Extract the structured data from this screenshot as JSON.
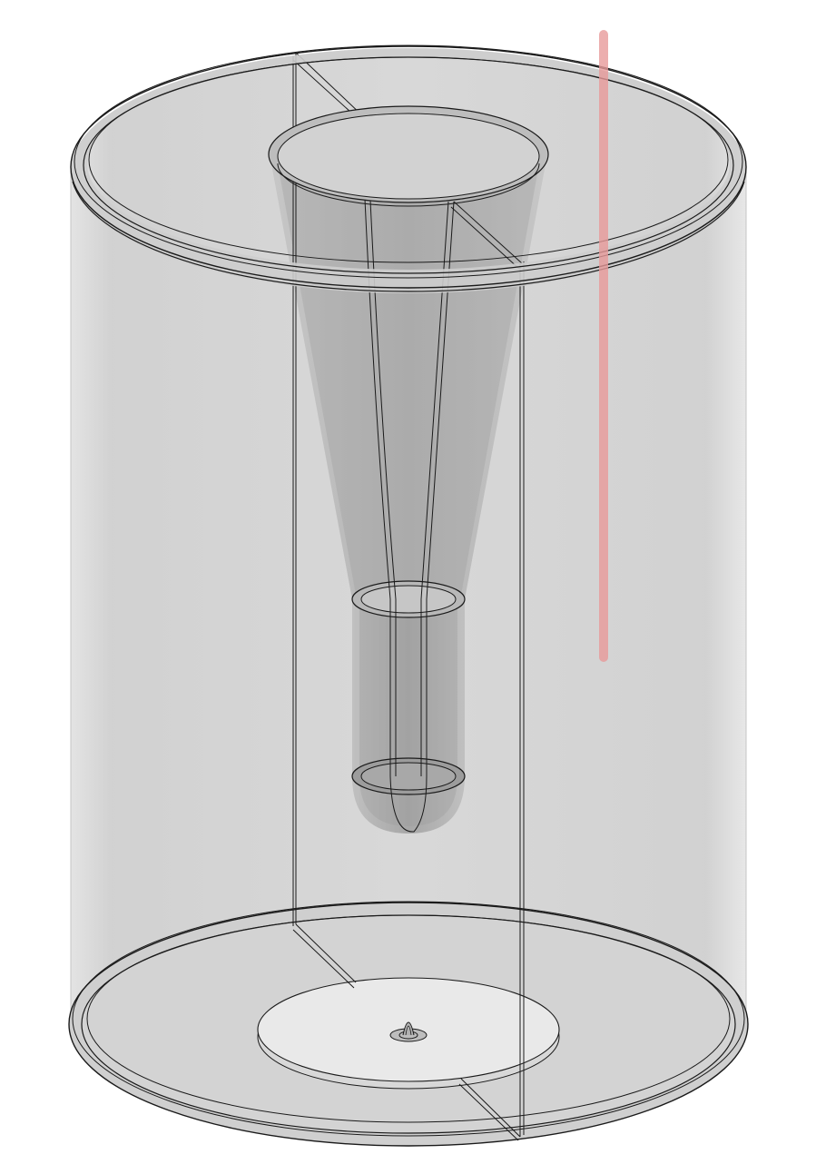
{
  "scene": {
    "background": "#ffffff",
    "body_color": "#d4d4d4",
    "body_edge_color": "#bdbdbd",
    "cone_color": "#a9a9a9",
    "floor_color": "#e8e8e8",
    "edge_color": "#1a1a1a",
    "indicator_color": "#e89a9a",
    "parts": [
      "outer-cylinder",
      "top-flange",
      "bottom-flange",
      "top-opening",
      "inner-cone",
      "narrow-tube",
      "tube-ring-upper",
      "tube-ring-lower",
      "tube-tip",
      "bottom-opening",
      "bottom-center-feature",
      "section-cut-lines",
      "vertical-indicator-bar"
    ]
  }
}
